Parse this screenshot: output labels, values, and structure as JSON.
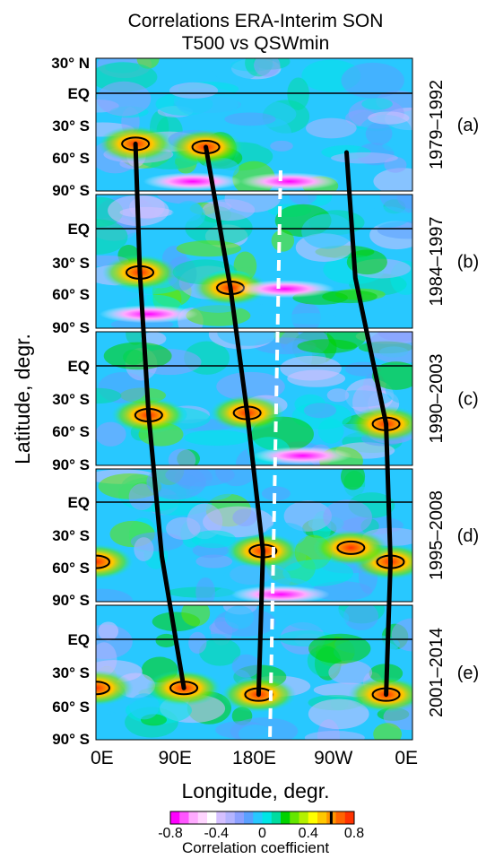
{
  "title_line1": "Correlations ERA-Interim SON",
  "title_line2": "T500 vs QSWmin",
  "ylabel": "Latitude, degr.",
  "xlabel": "Longitude, degr.",
  "colorbar_label": "Correlation coefficient",
  "chart_data": {
    "type": "heatmap",
    "x_ticks": [
      "0E",
      "90E",
      "180E",
      "90W",
      "0E"
    ],
    "y_ticks": [
      "30° N",
      "EQ",
      "30° S",
      "60° S",
      "90° S"
    ],
    "colorbar": {
      "range": [
        -0.8,
        0.8
      ],
      "ticks": [
        "-0.8",
        "-0.4",
        "0",
        "0.4",
        "0.8"
      ],
      "colors": [
        "#ff00ff",
        "#ff55ff",
        "#ffaaff",
        "#ffd5ff",
        "#ffffff",
        "#d5c0ff",
        "#b4b4ff",
        "#8ca0ff",
        "#5aa0ff",
        "#28c8ff",
        "#00e6e6",
        "#00dca0",
        "#00d200",
        "#64e600",
        "#b4f000",
        "#ffff00",
        "#ffc800",
        "#ff9600",
        "#ff6400",
        "#ff3200"
      ]
    },
    "panels": [
      {
        "label": "(a)",
        "period": "1979–1992",
        "y_ticks": [
          "30° N",
          "EQ",
          "30° S",
          "60° S",
          "90° S"
        ]
      },
      {
        "label": "(b)",
        "period": "1984–1997",
        "y_ticks": [
          "EQ",
          "30° S",
          "60° S",
          "90° S"
        ]
      },
      {
        "label": "(c)",
        "period": "1990–2003",
        "y_ticks": [
          "EQ",
          "30° S",
          "60° S",
          "90° S"
        ]
      },
      {
        "label": "(d)",
        "period": "1995–2008",
        "y_ticks": [
          "EQ",
          "30° S",
          "60° S",
          "90° S"
        ]
      },
      {
        "label": "(e)",
        "period": "2001–2014",
        "y_ticks": [
          "EQ",
          "30° S",
          "60° S",
          "90° S"
        ]
      }
    ],
    "tracks": [
      {
        "points": [
          {
            "lon": 45,
            "lat": -47
          },
          {
            "lon": 50,
            "lat": -40
          },
          {
            "lon": 60,
            "lat": -45
          },
          {
            "lon": 75,
            "lat": -50
          },
          {
            "lon": 100,
            "lat": -44
          }
        ]
      },
      {
        "points": [
          {
            "lon": 125,
            "lat": -50
          },
          {
            "lon": 153,
            "lat": -54
          },
          {
            "lon": 172,
            "lat": -43
          },
          {
            "lon": 190,
            "lat": -45
          },
          {
            "lon": 185,
            "lat": -50
          }
        ]
      },
      {
        "points": [
          {
            "lon": 285,
            "lat": -55
          },
          {
            "lon": 295,
            "lat": -45
          },
          {
            "lon": 330,
            "lat": -53
          },
          {
            "lon": 335,
            "lat": -55
          },
          {
            "lon": 330,
            "lat": -50
          }
        ]
      }
    ],
    "dashed_line_lon": 210,
    "highlights": [
      {
        "panel": 0,
        "lon": 45,
        "lat": -47,
        "sign": "pos"
      },
      {
        "panel": 0,
        "lon": 125,
        "lat": -50,
        "sign": "pos"
      },
      {
        "panel": 0,
        "lon": 110,
        "lat": -82,
        "sign": "neg"
      },
      {
        "panel": 0,
        "lon": 220,
        "lat": -82,
        "sign": "neg"
      },
      {
        "panel": 1,
        "lon": 50,
        "lat": -40,
        "sign": "pos"
      },
      {
        "panel": 1,
        "lon": 153,
        "lat": -54,
        "sign": "pos"
      },
      {
        "panel": 1,
        "lon": 60,
        "lat": -78,
        "sign": "neg"
      },
      {
        "panel": 1,
        "lon": 215,
        "lat": -55,
        "sign": "neg"
      },
      {
        "panel": 2,
        "lon": 60,
        "lat": -45,
        "sign": "pos"
      },
      {
        "panel": 2,
        "lon": 172,
        "lat": -43,
        "sign": "pos"
      },
      {
        "panel": 2,
        "lon": 330,
        "lat": -53,
        "sign": "pos"
      },
      {
        "panel": 2,
        "lon": 235,
        "lat": -82,
        "sign": "neg"
      },
      {
        "panel": 3,
        "lon": 0,
        "lat": -55,
        "sign": "pos"
      },
      {
        "panel": 3,
        "lon": 190,
        "lat": -45,
        "sign": "pos"
      },
      {
        "panel": 3,
        "lon": 335,
        "lat": -55,
        "sign": "pos"
      },
      {
        "panel": 3,
        "lon": 290,
        "lat": -42,
        "sign": "pos"
      },
      {
        "panel": 3,
        "lon": 210,
        "lat": -85,
        "sign": "neg"
      },
      {
        "panel": 4,
        "lon": 100,
        "lat": -44,
        "sign": "pos"
      },
      {
        "panel": 4,
        "lon": 185,
        "lat": -50,
        "sign": "pos"
      },
      {
        "panel": 4,
        "lon": 330,
        "lat": -50,
        "sign": "pos"
      },
      {
        "panel": 4,
        "lon": 0,
        "lat": -44,
        "sign": "pos"
      }
    ]
  }
}
